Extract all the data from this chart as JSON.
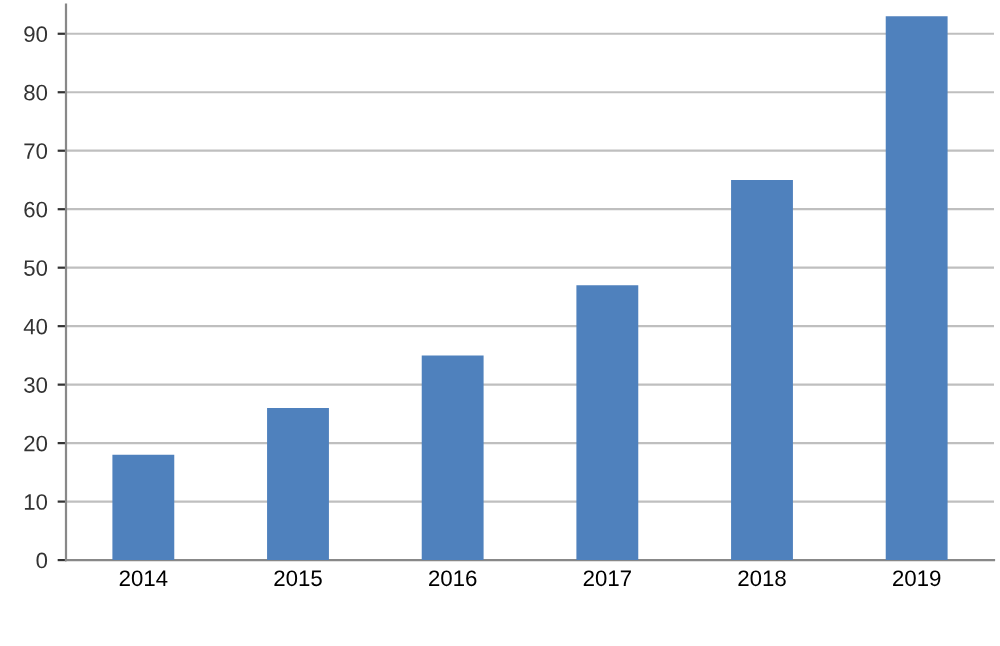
{
  "chart_data": {
    "type": "bar",
    "categories": [
      "2014",
      "2015",
      "2016",
      "2017",
      "2018",
      "2019"
    ],
    "values": [
      18,
      26,
      35,
      47,
      65,
      93
    ],
    "color": "#4f81bd",
    "ylim": [
      0,
      95
    ],
    "yticks": [
      0,
      10,
      20,
      30,
      40,
      50,
      60,
      70,
      80,
      90
    ],
    "grid": "y",
    "legend": false
  }
}
